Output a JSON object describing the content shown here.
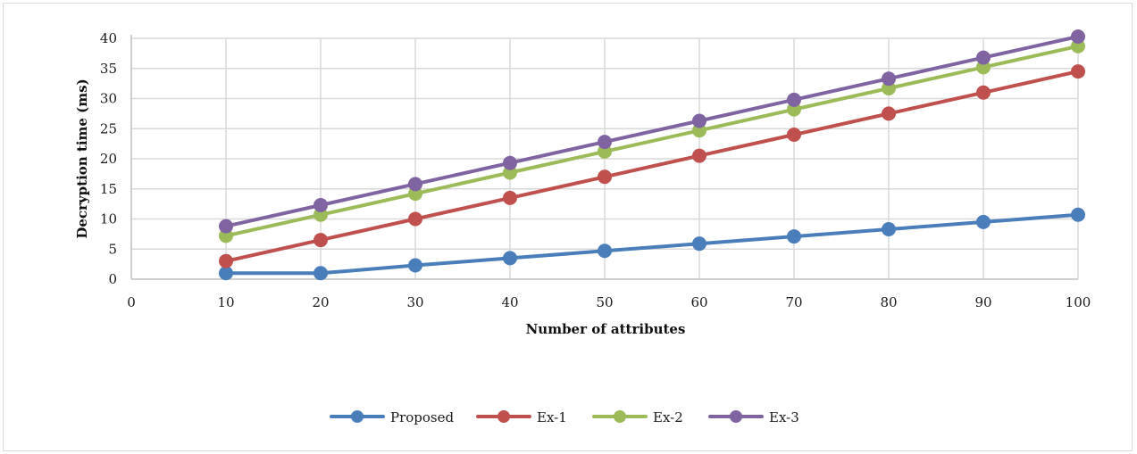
{
  "chart_data": {
    "type": "line",
    "title": "",
    "xlabel": "Number of attributes",
    "ylabel": "Decryption time (ms)",
    "x_ticks": [
      0,
      10,
      20,
      30,
      40,
      50,
      60,
      70,
      80,
      90,
      100
    ],
    "y_ticks": [
      0,
      5,
      10,
      15,
      20,
      25,
      30,
      35,
      40
    ],
    "xlim": [
      0,
      100
    ],
    "ylim": [
      0,
      40
    ],
    "grid": true,
    "legend_position": "bottom",
    "x": [
      10,
      20,
      30,
      40,
      50,
      60,
      70,
      80,
      90,
      100
    ],
    "series": [
      {
        "name": "Proposed",
        "color": "#4a7ebb",
        "values": [
          1.0,
          1.0,
          2.3,
          3.5,
          4.7,
          5.9,
          7.1,
          8.3,
          9.5,
          10.7
        ]
      },
      {
        "name": "Ex-1",
        "color": "#c0504d",
        "values": [
          3.0,
          6.5,
          10.0,
          13.5,
          17.0,
          20.5,
          24.0,
          27.5,
          31.0,
          34.5
        ]
      },
      {
        "name": "Ex-2",
        "color": "#9bbb59",
        "values": [
          7.2,
          10.7,
          14.2,
          17.7,
          21.2,
          24.7,
          28.2,
          31.7,
          35.2,
          38.7
        ]
      },
      {
        "name": "Ex-3",
        "color": "#8064a2",
        "values": [
          8.8,
          12.3,
          15.8,
          19.3,
          22.8,
          26.3,
          29.8,
          33.3,
          36.8,
          40.3
        ]
      }
    ]
  }
}
